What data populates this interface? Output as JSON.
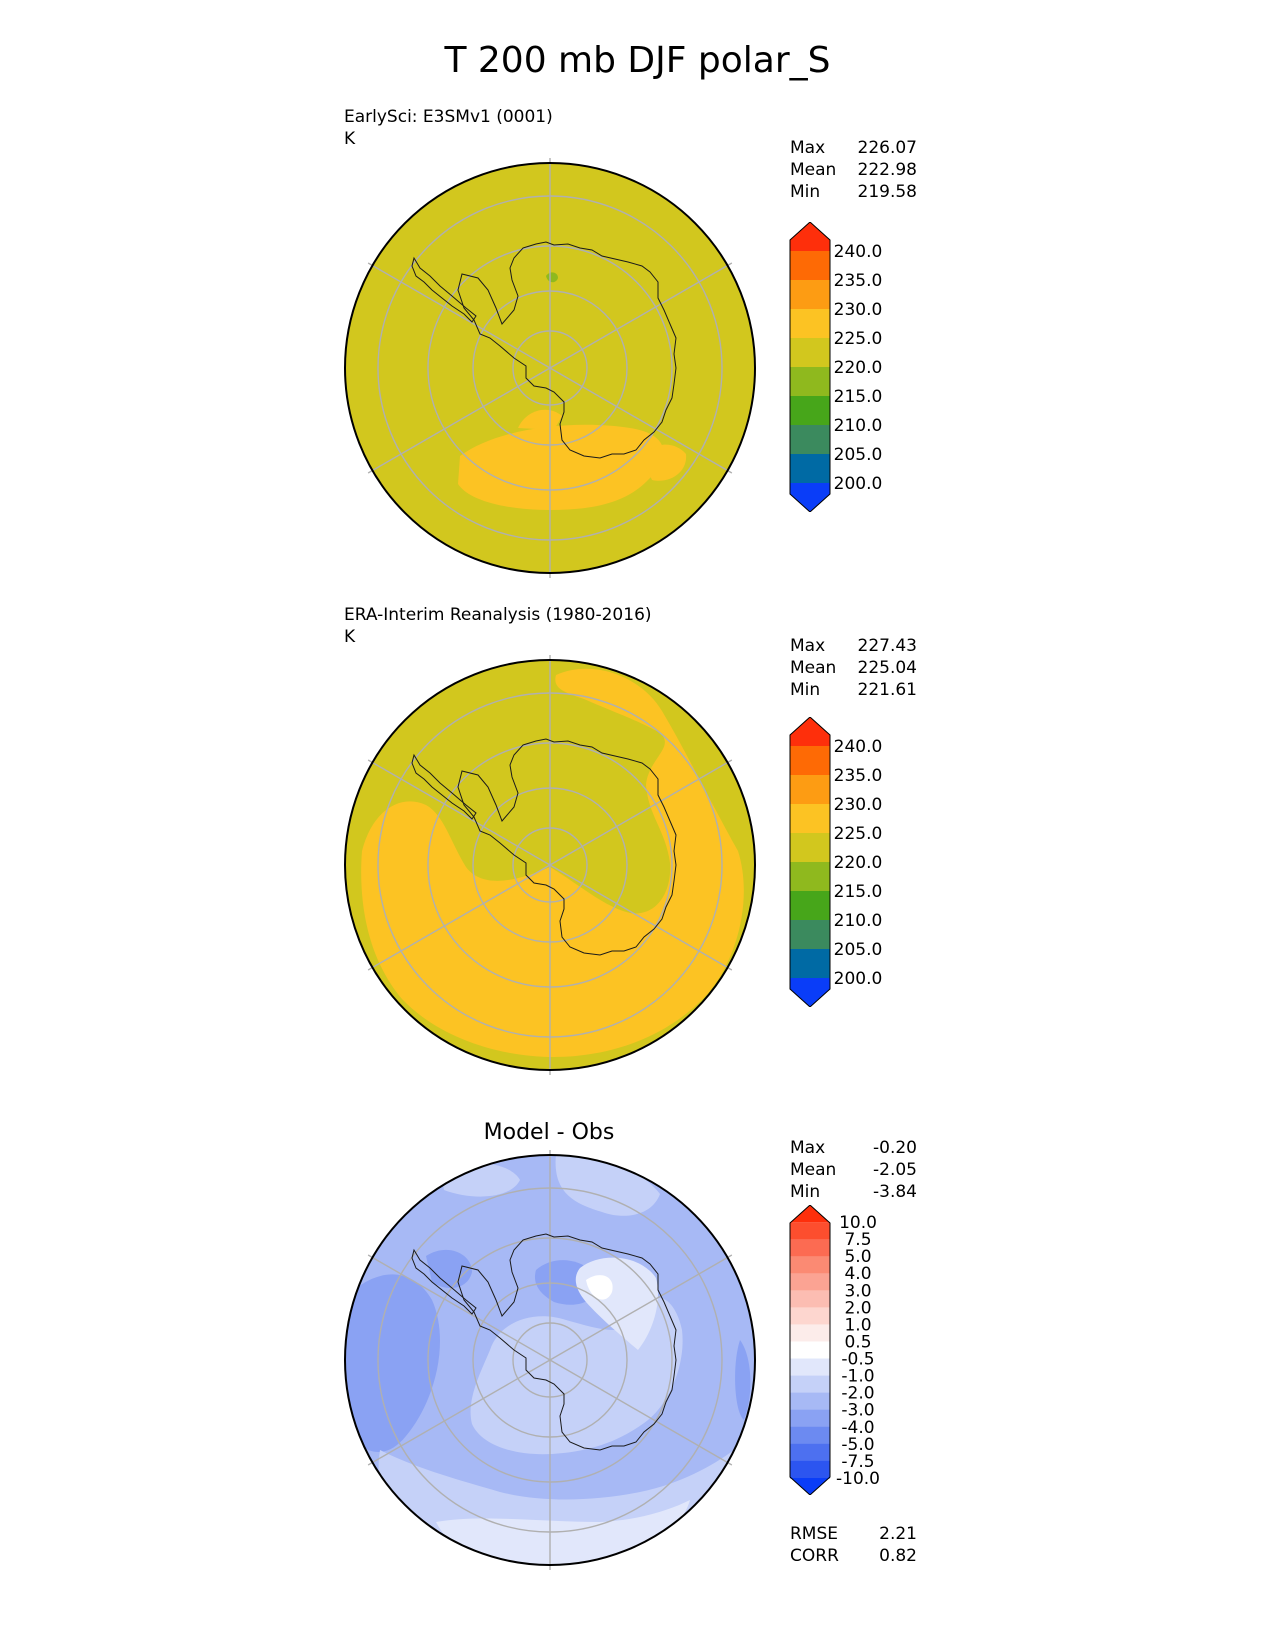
{
  "title": "T 200 mb DJF polar_S",
  "colors": {
    "coast": "#1a1a1a",
    "grid": "#b0b0b0",
    "bg": "#d2c71e"
  },
  "chart_data": [
    {
      "type": "heatmap",
      "projection": "polar south stereographic",
      "subtitle": "EarlySci: E3SMv1 (0001)",
      "units": "K",
      "stats": [
        {
          "label": "Max",
          "value": "226.07"
        },
        {
          "label": "Mean",
          "value": "222.98"
        },
        {
          "label": "Min",
          "value": "219.58"
        }
      ],
      "colorbar": {
        "levels": [
          "240.0",
          "235.0",
          "230.0",
          "225.0",
          "220.0",
          "215.0",
          "210.0",
          "205.0",
          "200.0"
        ],
        "colors": [
          "#fe2f0b",
          "#fe6a05",
          "#fd9c13",
          "#fcc323",
          "#d2c71e",
          "#8fb91e",
          "#47a61a",
          "#3b8a5e",
          "#006aa4",
          "#0a3df8"
        ]
      }
    },
    {
      "type": "heatmap",
      "projection": "polar south stereographic",
      "subtitle": "ERA-Interim Reanalysis (1980-2016)",
      "units": "K",
      "stats": [
        {
          "label": "Max",
          "value": "227.43"
        },
        {
          "label": "Mean",
          "value": "225.04"
        },
        {
          "label": "Min",
          "value": "221.61"
        }
      ],
      "colorbar": {
        "levels": [
          "240.0",
          "235.0",
          "230.0",
          "225.0",
          "220.0",
          "215.0",
          "210.0",
          "205.0",
          "200.0"
        ],
        "colors": [
          "#fe2f0b",
          "#fe6a05",
          "#fd9c13",
          "#fcc323",
          "#d2c71e",
          "#8fb91e",
          "#47a61a",
          "#3b8a5e",
          "#006aa4",
          "#0a3df8"
        ]
      }
    },
    {
      "type": "heatmap",
      "projection": "polar south stereographic",
      "title": "Model - Obs",
      "stats": [
        {
          "label": "Max",
          "value": "-0.20"
        },
        {
          "label": "Mean",
          "value": "-2.05"
        },
        {
          "label": "Min",
          "value": "-3.84"
        }
      ],
      "metrics": [
        {
          "label": "RMSE",
          "value": "2.21"
        },
        {
          "label": "CORR",
          "value": "0.82"
        }
      ],
      "colorbar": {
        "levels": [
          "10.0",
          "7.5",
          "5.0",
          "4.0",
          "3.0",
          "2.0",
          "1.0",
          "0.5",
          "-0.5",
          "-1.0",
          "-2.0",
          "-3.0",
          "-4.0",
          "-5.0",
          "-7.5",
          "-10.0"
        ],
        "colors": [
          "#fe2f0b",
          "#fd4e2e",
          "#fc6b52",
          "#fb8a73",
          "#fba393",
          "#fcbdb2",
          "#fdd6cf",
          "#fcecea",
          "#ffffff",
          "#e1e7fb",
          "#c5d1f8",
          "#a7b9f5",
          "#8aa2f3",
          "#6c8af1",
          "#4d70f0",
          "#2c55f0",
          "#0a3df8"
        ]
      }
    }
  ]
}
